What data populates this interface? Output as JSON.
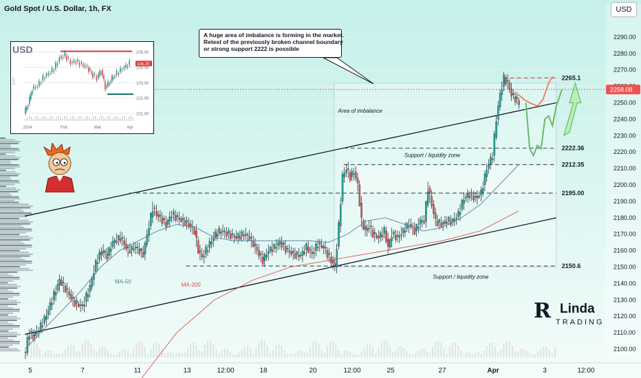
{
  "header": {
    "title": "Gold Spot / U.S. Dollar, 1h, FX",
    "currency_button": "USD"
  },
  "callout": {
    "lines": [
      "A huge area of imbalance is forming in the market.",
      "Retest of the previously broken channel boundary",
      "or strong support 2222 is possible"
    ]
  },
  "chart_data": {
    "type": "line",
    "title": "Gold Spot / U.S. Dollar, 1h, FX",
    "y_axis": {
      "min": 2095,
      "max": 2300,
      "ticks": [
        2100,
        2110,
        2120,
        2130,
        2140,
        2150,
        2160,
        2170,
        2180,
        2190,
        2200,
        2210,
        2220,
        2230,
        2240,
        2250,
        2260,
        2270,
        2280,
        2290
      ]
    },
    "x_axis": {
      "ticks": [
        "5",
        "7",
        "11",
        "13",
        "12:00",
        "18",
        "20",
        "12:00",
        "25",
        "27",
        "Apr",
        "3",
        "12:00"
      ]
    },
    "current_price": 2258.08,
    "levels": [
      {
        "label": "2265.1",
        "value": 2265.1,
        "color": "#e03a3a"
      },
      {
        "label": "2222.36",
        "value": 2222.36,
        "color": "#4b5563"
      },
      {
        "label": "2212.35",
        "value": 2212.35,
        "color": "#4b5563"
      },
      {
        "label": "2195.00",
        "value": 2195.0,
        "color": "#4b5563"
      },
      {
        "label": "2150.6",
        "value": 2150.6,
        "color": "#4b5563"
      }
    ],
    "annotations": [
      "Area of imbalance",
      "Support / liquidity zone",
      "Support / liquidity zone",
      "MA-50",
      "MA-200"
    ],
    "series": [
      {
        "name": "XAUUSD",
        "color": "#1f2937",
        "values": [
          [
            0,
            2098
          ],
          [
            3,
            2110
          ],
          [
            8,
            2108
          ],
          [
            14,
            2112
          ],
          [
            20,
            2118
          ],
          [
            28,
            2130
          ],
          [
            36,
            2142
          ],
          [
            44,
            2135
          ],
          [
            52,
            2128
          ],
          [
            60,
            2126
          ],
          [
            68,
            2138
          ],
          [
            74,
            2152
          ],
          [
            80,
            2160
          ],
          [
            86,
            2157
          ],
          [
            92,
            2165
          ],
          [
            100,
            2168
          ],
          [
            108,
            2160
          ],
          [
            116,
            2162
          ],
          [
            124,
            2158
          ],
          [
            130,
            2175
          ],
          [
            134,
            2186
          ],
          [
            138,
            2182
          ],
          [
            142,
            2180
          ],
          [
            148,
            2176
          ],
          [
            154,
            2182
          ],
          [
            160,
            2180
          ],
          [
            166,
            2178
          ],
          [
            172,
            2176
          ],
          [
            178,
            2172
          ],
          [
            182,
            2160
          ],
          [
            186,
            2156
          ],
          [
            194,
            2164
          ],
          [
            200,
            2170
          ],
          [
            206,
            2172
          ],
          [
            214,
            2170
          ],
          [
            222,
            2168
          ],
          [
            230,
            2170
          ],
          [
            236,
            2168
          ],
          [
            244,
            2160
          ],
          [
            250,
            2154
          ],
          [
            256,
            2160
          ],
          [
            262,
            2162
          ],
          [
            268,
            2165
          ],
          [
            276,
            2160
          ],
          [
            282,
            2158
          ],
          [
            290,
            2157
          ],
          [
            296,
            2162
          ],
          [
            302,
            2158
          ],
          [
            308,
            2164
          ],
          [
            314,
            2162
          ],
          [
            320,
            2156
          ],
          [
            326,
            2150
          ],
          [
            330,
            2175
          ],
          [
            334,
            2205
          ],
          [
            338,
            2210
          ],
          [
            342,
            2205
          ],
          [
            346,
            2208
          ],
          [
            350,
            2200
          ],
          [
            354,
            2178
          ],
          [
            358,
            2172
          ],
          [
            362,
            2175
          ],
          [
            366,
            2170
          ],
          [
            372,
            2168
          ],
          [
            378,
            2172
          ],
          [
            382,
            2162
          ],
          [
            386,
            2170
          ],
          [
            392,
            2168
          ],
          [
            398,
            2172
          ],
          [
            404,
            2176
          ],
          [
            410,
            2172
          ],
          [
            416,
            2178
          ],
          [
            420,
            2178
          ],
          [
            424,
            2198
          ],
          [
            428,
            2188
          ],
          [
            432,
            2178
          ],
          [
            438,
            2176
          ],
          [
            444,
            2178
          ],
          [
            450,
            2178
          ],
          [
            456,
            2182
          ],
          [
            462,
            2192
          ],
          [
            468,
            2194
          ],
          [
            474,
            2192
          ],
          [
            480,
            2195
          ],
          [
            486,
            2210
          ],
          [
            492,
            2218
          ],
          [
            496,
            2240
          ],
          [
            500,
            2255
          ],
          [
            504,
            2265
          ],
          [
            508,
            2262
          ],
          [
            512,
            2255
          ],
          [
            520,
            2250
          ],
          [
            528,
            2222
          ],
          [
            534,
            2226
          ],
          [
            540,
            2220
          ],
          [
            546,
            2236
          ],
          [
            552,
            2245
          ],
          [
            556,
            2250
          ],
          [
            560,
            2270
          ]
        ]
      },
      {
        "name": "MA-50",
        "color": "#4d7d9c",
        "values": [
          [
            0,
            2100
          ],
          [
            20,
            2112
          ],
          [
            40,
            2124
          ],
          [
            60,
            2136
          ],
          [
            80,
            2150
          ],
          [
            100,
            2160
          ],
          [
            120,
            2166
          ],
          [
            140,
            2172
          ],
          [
            160,
            2176
          ],
          [
            180,
            2174
          ],
          [
            200,
            2168
          ],
          [
            220,
            2166
          ],
          [
            240,
            2166
          ],
          [
            260,
            2166
          ],
          [
            280,
            2166
          ],
          [
            300,
            2166
          ],
          [
            320,
            2165
          ],
          [
            340,
            2170
          ],
          [
            360,
            2178
          ],
          [
            380,
            2180
          ],
          [
            400,
            2176
          ],
          [
            420,
            2172
          ],
          [
            440,
            2174
          ],
          [
            460,
            2180
          ],
          [
            480,
            2188
          ],
          [
            500,
            2200
          ],
          [
            520,
            2212
          ]
        ]
      },
      {
        "name": "MA-200",
        "color": "#e04b4b",
        "values": [
          [
            120,
            2080
          ],
          [
            160,
            2110
          ],
          [
            200,
            2130
          ],
          [
            240,
            2142
          ],
          [
            280,
            2150
          ],
          [
            320,
            2154
          ],
          [
            360,
            2158
          ],
          [
            400,
            2162
          ],
          [
            440,
            2166
          ],
          [
            480,
            2172
          ],
          [
            500,
            2178
          ],
          [
            520,
            2184
          ]
        ]
      }
    ],
    "grid": true
  },
  "inset_chart": {
    "symbol": "USD",
    "y_ticks": [
      "105.00",
      "104.00",
      "103.00",
      "102.00",
      "101.00"
    ],
    "x_ticks": [
      "2024",
      "Feb",
      "Mar",
      "Apr"
    ],
    "price_label": "104.25",
    "side_label": "DXY"
  },
  "logo": {
    "glyph": "R",
    "line1": "Linda",
    "line2": "TRADING"
  },
  "colors": {
    "up": "#26a69a",
    "down": "#ef5350",
    "channel": "#131722",
    "projection_up": "#66bb6a",
    "projection_down": "#f4785a"
  }
}
